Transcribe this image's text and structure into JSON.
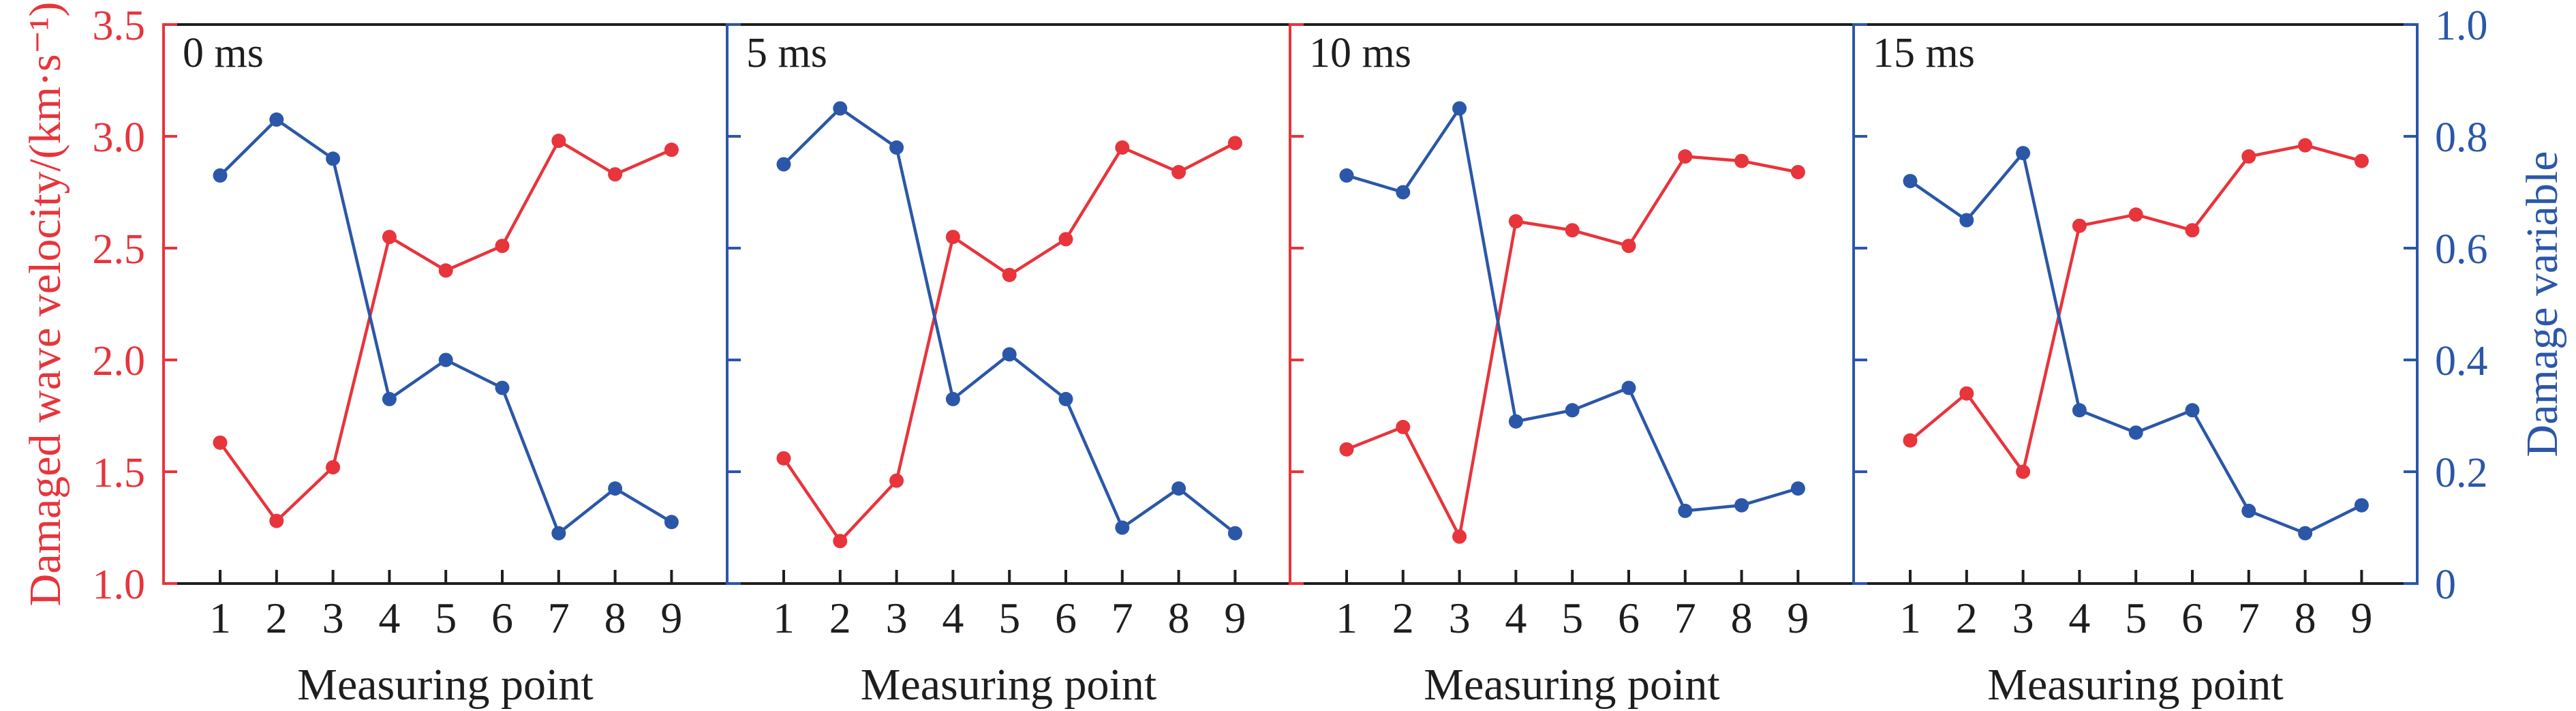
{
  "colors": {
    "velocity": "#e8343b",
    "damage": "#2b57a8",
    "axis": "#1e1e1e"
  },
  "chart_data": {
    "type": "line",
    "layout": "four side-by-side panels sharing dual y-axes",
    "x": [
      1,
      2,
      3,
      4,
      5,
      6,
      7,
      8,
      9
    ],
    "x_tick_labels": [
      "1",
      "2",
      "3",
      "4",
      "5",
      "6",
      "7",
      "8",
      "9"
    ],
    "xlabel": "Measuring point",
    "ylabel_left": "Damaged wave velocity/(km·s⁻¹)",
    "ylabel_right": "Damage variable",
    "ylim_left": [
      1.0,
      3.5
    ],
    "ylim_right": [
      0,
      1.0
    ],
    "y_left_ticks": [
      "1.0",
      "1.5",
      "2.0",
      "2.5",
      "3.0",
      "3.5"
    ],
    "y_right_ticks": [
      "0",
      "0.2",
      "0.4",
      "0.6",
      "0.8",
      "1.0"
    ],
    "y_left_tick_values": [
      1.0,
      1.5,
      2.0,
      2.5,
      3.0,
      3.5
    ],
    "y_right_tick_values": [
      0,
      0.2,
      0.4,
      0.6,
      0.8,
      1.0
    ],
    "grid": false,
    "panels": [
      {
        "label": "0 ms",
        "series": [
          {
            "name": "Damaged wave velocity",
            "axis": "left",
            "values": [
              1.63,
              1.28,
              1.52,
              2.55,
              2.4,
              2.51,
              2.98,
              2.83,
              2.94
            ]
          },
          {
            "name": "Damage variable",
            "axis": "right",
            "values": [
              0.73,
              0.83,
              0.76,
              0.33,
              0.4,
              0.35,
              0.09,
              0.17,
              0.11
            ]
          }
        ]
      },
      {
        "label": "5 ms",
        "series": [
          {
            "name": "Damaged wave velocity",
            "axis": "left",
            "values": [
              1.56,
              1.19,
              1.46,
              2.55,
              2.38,
              2.54,
              2.95,
              2.84,
              2.97
            ]
          },
          {
            "name": "Damage variable",
            "axis": "right",
            "values": [
              0.75,
              0.85,
              0.78,
              0.33,
              0.41,
              0.33,
              0.1,
              0.17,
              0.09
            ]
          }
        ]
      },
      {
        "label": "10 ms",
        "series": [
          {
            "name": "Damaged wave velocity",
            "axis": "left",
            "values": [
              1.6,
              1.7,
              1.21,
              2.62,
              2.58,
              2.51,
              2.91,
              2.89,
              2.84
            ]
          },
          {
            "name": "Damage variable",
            "axis": "right",
            "values": [
              0.73,
              0.7,
              0.85,
              0.29,
              0.31,
              0.35,
              0.13,
              0.14,
              0.17
            ]
          }
        ]
      },
      {
        "label": "15 ms",
        "series": [
          {
            "name": "Damaged wave velocity",
            "axis": "left",
            "values": [
              1.64,
              1.85,
              1.5,
              2.6,
              2.65,
              2.58,
              2.91,
              2.96,
              2.89
            ]
          },
          {
            "name": "Damage variable",
            "axis": "right",
            "values": [
              0.72,
              0.65,
              0.77,
              0.31,
              0.27,
              0.31,
              0.13,
              0.09,
              0.14
            ]
          }
        ]
      }
    ]
  }
}
